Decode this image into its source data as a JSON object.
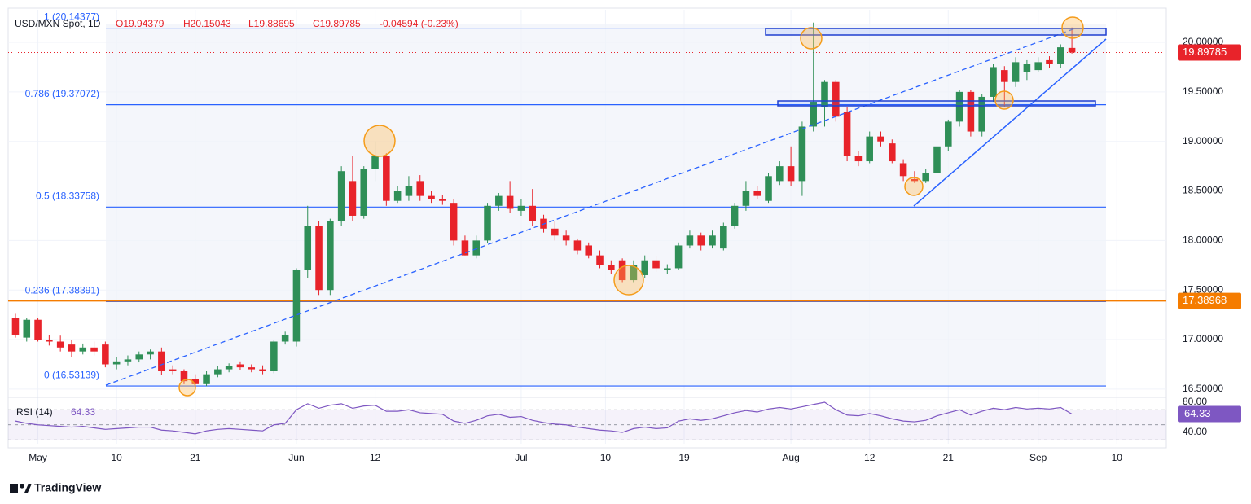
{
  "chart_data": {
    "type": "candlestick",
    "header": {
      "symbol": "USD/MXN Spot, 1D",
      "open": "O19.94379",
      "high": "H20.15043",
      "low": "L19.88695",
      "close": "C19.89785",
      "change": "-0.04594 (-0.23%)"
    },
    "up_color": "#2f8f57",
    "down_color": "#e8232a",
    "ylim": [
      16.417,
      20.329
    ],
    "yticks": [
      {
        "value": 20,
        "label": "20.00000"
      },
      {
        "value": 19.5,
        "label": "19.50000"
      },
      {
        "value": 19,
        "label": "19.00000"
      },
      {
        "value": 18.5,
        "label": "18.50000"
      },
      {
        "value": 18,
        "label": "18.00000"
      },
      {
        "value": 17.5,
        "label": "17.50000"
      },
      {
        "value": 17,
        "label": "17.00000"
      },
      {
        "value": 16.5,
        "label": "16.50000"
      }
    ],
    "xlim": [
      -0.65,
      102.4
    ],
    "xticks": [
      {
        "value": 2,
        "label": "May"
      },
      {
        "value": 9,
        "label": "10"
      },
      {
        "value": 16,
        "label": "21"
      },
      {
        "value": 25,
        "label": "Jun"
      },
      {
        "value": 32,
        "label": "12"
      },
      {
        "value": 45,
        "label": "Jul"
      },
      {
        "value": 52.5,
        "label": "10"
      },
      {
        "value": 59.5,
        "label": "19"
      },
      {
        "value": 69,
        "label": "Aug"
      },
      {
        "value": 76,
        "label": "12"
      },
      {
        "value": 83,
        "label": "21"
      },
      {
        "value": 91,
        "label": "Sep"
      },
      {
        "value": 98,
        "label": "10"
      }
    ],
    "fib_levels": [
      {
        "value": 20.14377,
        "label": "1 (20.14377)"
      },
      {
        "value": 19.37072,
        "label": "0.786 (19.37072)"
      },
      {
        "value": 18.33758,
        "label": "0.5 (18.33758)"
      },
      {
        "value": 17.38391,
        "label": "0.236 (17.38391)"
      },
      {
        "value": 16.53139,
        "label": "0 (16.53139)"
      }
    ],
    "price_tags": [
      {
        "value": 19.89785,
        "label": "19.89785",
        "color": "#e8232a"
      },
      {
        "value": 17.38968,
        "label": "17.38968",
        "color": "#f57c00"
      }
    ],
    "ohlc": [
      [
        17.22,
        17.26,
        17.02,
        17.05
      ],
      [
        17.02,
        17.22,
        16.98,
        17.2
      ],
      [
        17.2,
        17.22,
        16.98,
        17.0
      ],
      [
        17.0,
        17.05,
        16.94,
        16.98
      ],
      [
        16.98,
        17.04,
        16.88,
        16.92
      ],
      [
        16.95,
        17.0,
        16.82,
        16.88
      ],
      [
        16.88,
        16.96,
        16.85,
        16.92
      ],
      [
        16.92,
        16.98,
        16.84,
        16.88
      ],
      [
        16.95,
        16.98,
        16.72,
        16.75
      ],
      [
        16.75,
        16.82,
        16.7,
        16.78
      ],
      [
        16.78,
        16.84,
        16.74,
        16.8
      ],
      [
        16.8,
        16.88,
        16.77,
        16.85
      ],
      [
        16.85,
        16.9,
        16.8,
        16.88
      ],
      [
        16.88,
        16.92,
        16.64,
        16.68
      ],
      [
        16.7,
        16.74,
        16.65,
        16.68
      ],
      [
        16.68,
        16.7,
        16.55,
        16.58
      ],
      [
        16.6,
        16.65,
        16.52,
        16.55
      ],
      [
        16.55,
        16.68,
        16.53,
        16.65
      ],
      [
        16.65,
        16.73,
        16.62,
        16.7
      ],
      [
        16.7,
        16.76,
        16.67,
        16.73
      ],
      [
        16.75,
        16.78,
        16.69,
        16.72
      ],
      [
        16.72,
        16.75,
        16.67,
        16.7
      ],
      [
        16.7,
        16.74,
        16.65,
        16.68
      ],
      [
        16.68,
        17.0,
        16.66,
        16.98
      ],
      [
        16.98,
        17.08,
        16.95,
        17.05
      ],
      [
        16.98,
        17.72,
        16.93,
        17.7
      ],
      [
        17.7,
        18.35,
        17.62,
        18.15
      ],
      [
        18.15,
        18.2,
        17.45,
        17.5
      ],
      [
        17.5,
        18.22,
        17.45,
        18.2
      ],
      [
        18.2,
        18.75,
        18.15,
        18.7
      ],
      [
        18.6,
        18.85,
        18.2,
        18.25
      ],
      [
        18.25,
        18.75,
        18.22,
        18.72
      ],
      [
        18.72,
        19.0,
        18.6,
        18.85
      ],
      [
        18.85,
        18.88,
        18.35,
        18.4
      ],
      [
        18.4,
        18.55,
        18.38,
        18.5
      ],
      [
        18.45,
        18.65,
        18.4,
        18.55
      ],
      [
        18.6,
        18.66,
        18.4,
        18.45
      ],
      [
        18.45,
        18.5,
        18.38,
        18.42
      ],
      [
        18.42,
        18.46,
        18.36,
        18.4
      ],
      [
        18.38,
        18.42,
        17.95,
        18.0
      ],
      [
        18.0,
        18.05,
        17.85,
        17.85
      ],
      [
        17.85,
        18.05,
        17.82,
        18.0
      ],
      [
        18.0,
        18.38,
        17.97,
        18.35
      ],
      [
        18.35,
        18.48,
        18.3,
        18.45
      ],
      [
        18.45,
        18.6,
        18.28,
        18.32
      ],
      [
        18.3,
        18.42,
        18.25,
        18.35
      ],
      [
        18.35,
        18.52,
        18.15,
        18.2
      ],
      [
        18.22,
        18.26,
        18.08,
        18.12
      ],
      [
        18.12,
        18.2,
        18.0,
        18.05
      ],
      [
        18.05,
        18.1,
        17.95,
        18.0
      ],
      [
        18.0,
        18.02,
        17.86,
        17.9
      ],
      [
        17.95,
        17.98,
        17.82,
        17.85
      ],
      [
        17.85,
        17.9,
        17.72,
        17.75
      ],
      [
        17.75,
        17.8,
        17.66,
        17.7
      ],
      [
        17.8,
        17.82,
        17.58,
        17.6
      ],
      [
        17.6,
        17.8,
        17.58,
        17.75
      ],
      [
        17.65,
        17.85,
        17.62,
        17.8
      ],
      [
        17.8,
        17.84,
        17.68,
        17.72
      ],
      [
        17.7,
        17.76,
        17.66,
        17.72
      ],
      [
        17.72,
        17.98,
        17.7,
        17.95
      ],
      [
        17.95,
        18.1,
        17.92,
        18.05
      ],
      [
        18.05,
        18.08,
        17.9,
        17.95
      ],
      [
        17.95,
        18.1,
        17.92,
        18.05
      ],
      [
        17.92,
        18.18,
        17.9,
        18.15
      ],
      [
        18.15,
        18.38,
        18.12,
        18.35
      ],
      [
        18.35,
        18.6,
        18.3,
        18.5
      ],
      [
        18.5,
        18.55,
        18.42,
        18.45
      ],
      [
        18.4,
        18.68,
        18.38,
        18.65
      ],
      [
        18.6,
        18.8,
        18.56,
        18.75
      ],
      [
        18.75,
        18.95,
        18.55,
        18.6
      ],
      [
        18.6,
        19.2,
        18.45,
        19.15
      ],
      [
        19.15,
        20.2,
        19.1,
        19.4
      ],
      [
        19.35,
        19.62,
        19.15,
        19.6
      ],
      [
        19.6,
        19.62,
        19.2,
        19.25
      ],
      [
        19.3,
        19.35,
        18.8,
        18.85
      ],
      [
        18.85,
        18.9,
        18.75,
        18.8
      ],
      [
        18.8,
        19.1,
        18.78,
        19.05
      ],
      [
        19.05,
        19.1,
        18.95,
        19.0
      ],
      [
        18.98,
        19.02,
        18.78,
        18.8
      ],
      [
        18.78,
        18.82,
        18.6,
        18.65
      ],
      [
        18.62,
        18.7,
        18.58,
        18.6
      ],
      [
        18.6,
        18.72,
        18.58,
        18.68
      ],
      [
        18.68,
        18.98,
        18.65,
        18.95
      ],
      [
        18.95,
        19.22,
        18.9,
        19.2
      ],
      [
        19.2,
        19.52,
        19.15,
        19.5
      ],
      [
        19.5,
        19.52,
        19.05,
        19.1
      ],
      [
        19.1,
        19.48,
        19.05,
        19.45
      ],
      [
        19.45,
        19.78,
        19.4,
        19.75
      ],
      [
        19.72,
        19.76,
        19.35,
        19.6
      ],
      [
        19.6,
        19.85,
        19.55,
        19.8
      ],
      [
        19.7,
        19.82,
        19.62,
        19.78
      ],
      [
        19.72,
        19.85,
        19.7,
        19.8
      ],
      [
        19.82,
        19.86,
        19.74,
        19.78
      ],
      [
        19.78,
        19.98,
        19.74,
        19.95
      ],
      [
        19.94379,
        20.15043,
        19.88695,
        19.89785
      ]
    ],
    "rsi": {
      "name": "RSI (14)",
      "color": "#7e57c2",
      "ylim": [
        24.9,
        85.4
      ],
      "yticks": [
        {
          "value": 80,
          "label": "80.00"
        },
        {
          "value": 40,
          "label": "40.00"
        }
      ],
      "levels": [
        70,
        50,
        30
      ],
      "values": [
        55,
        52,
        50,
        49,
        48,
        47,
        48,
        46,
        44,
        45,
        46,
        47,
        47,
        43,
        42,
        40,
        38,
        42,
        44,
        45,
        44,
        43,
        42,
        50,
        52,
        70,
        78,
        72,
        76,
        78,
        72,
        75,
        76,
        68,
        68,
        70,
        66,
        65,
        64,
        55,
        52,
        56,
        62,
        64,
        60,
        61,
        56,
        53,
        51,
        50,
        47,
        45,
        43,
        42,
        40,
        45,
        47,
        45,
        46,
        55,
        58,
        56,
        58,
        62,
        66,
        69,
        67,
        71,
        73,
        71,
        74,
        77,
        80,
        70,
        63,
        62,
        65,
        62,
        58,
        55,
        54,
        56,
        62,
        66,
        70,
        63,
        68,
        72,
        70,
        73,
        71,
        72,
        71,
        73,
        64.33
      ]
    },
    "footer": "TradingView"
  }
}
